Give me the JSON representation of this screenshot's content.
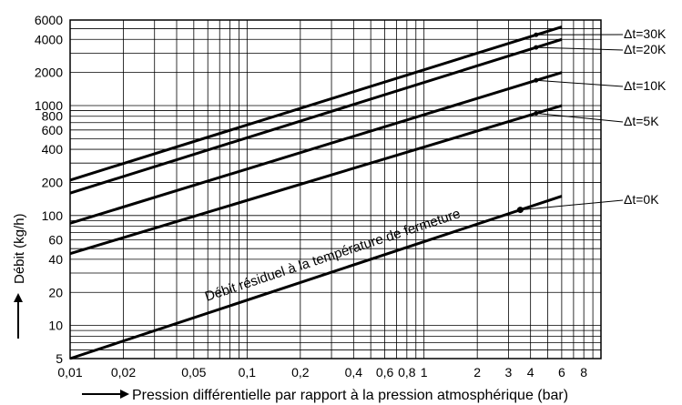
{
  "chart_data": {
    "type": "line",
    "title": "",
    "xlabel": "Pression différentielle par rapport à la pression atmosphérique (bar)",
    "ylabel": "Débit (kg/h)",
    "x_scale": "log",
    "y_scale": "log",
    "xlim": [
      0.01,
      10
    ],
    "ylim": [
      5,
      6000
    ],
    "grid": true,
    "x_ticks": [
      0.01,
      0.02,
      0.05,
      0.1,
      0.2,
      0.4,
      0.6,
      0.8,
      1,
      2,
      3,
      4,
      6,
      8
    ],
    "x_tick_labels": [
      "0,01",
      "0,02",
      "0,05",
      "0,1",
      "0,2",
      "0,4",
      "0,6",
      "0,8",
      "1",
      "2",
      "3",
      "4",
      "6",
      "8"
    ],
    "y_ticks": [
      5,
      10,
      20,
      40,
      60,
      100,
      200,
      400,
      600,
      800,
      1000,
      2000,
      4000,
      6000
    ],
    "y_tick_labels": [
      "5",
      "10",
      "20",
      "40",
      "60",
      "100",
      "200",
      "400",
      "600",
      "800",
      "1000",
      "2000",
      "4000",
      "6000"
    ],
    "series": [
      {
        "name": "Δt=30K",
        "x": [
          0.01,
          6
        ],
        "y": [
          210,
          5200
        ]
      },
      {
        "name": "Δt=20K",
        "x": [
          0.01,
          6
        ],
        "y": [
          160,
          4000
        ]
      },
      {
        "name": "Δt=10K",
        "x": [
          0.01,
          6
        ],
        "y": [
          85,
          2000
        ]
      },
      {
        "name": "Δt=5K",
        "x": [
          0.01,
          6
        ],
        "y": [
          45,
          1000
        ]
      },
      {
        "name": "Δt=0K",
        "x": [
          0.01,
          6
        ],
        "y": [
          5,
          150
        ]
      }
    ],
    "annotations": [
      {
        "text": "Débit résiduel à la température de fermeture",
        "x": 0.45,
        "y": 33
      }
    ]
  }
}
